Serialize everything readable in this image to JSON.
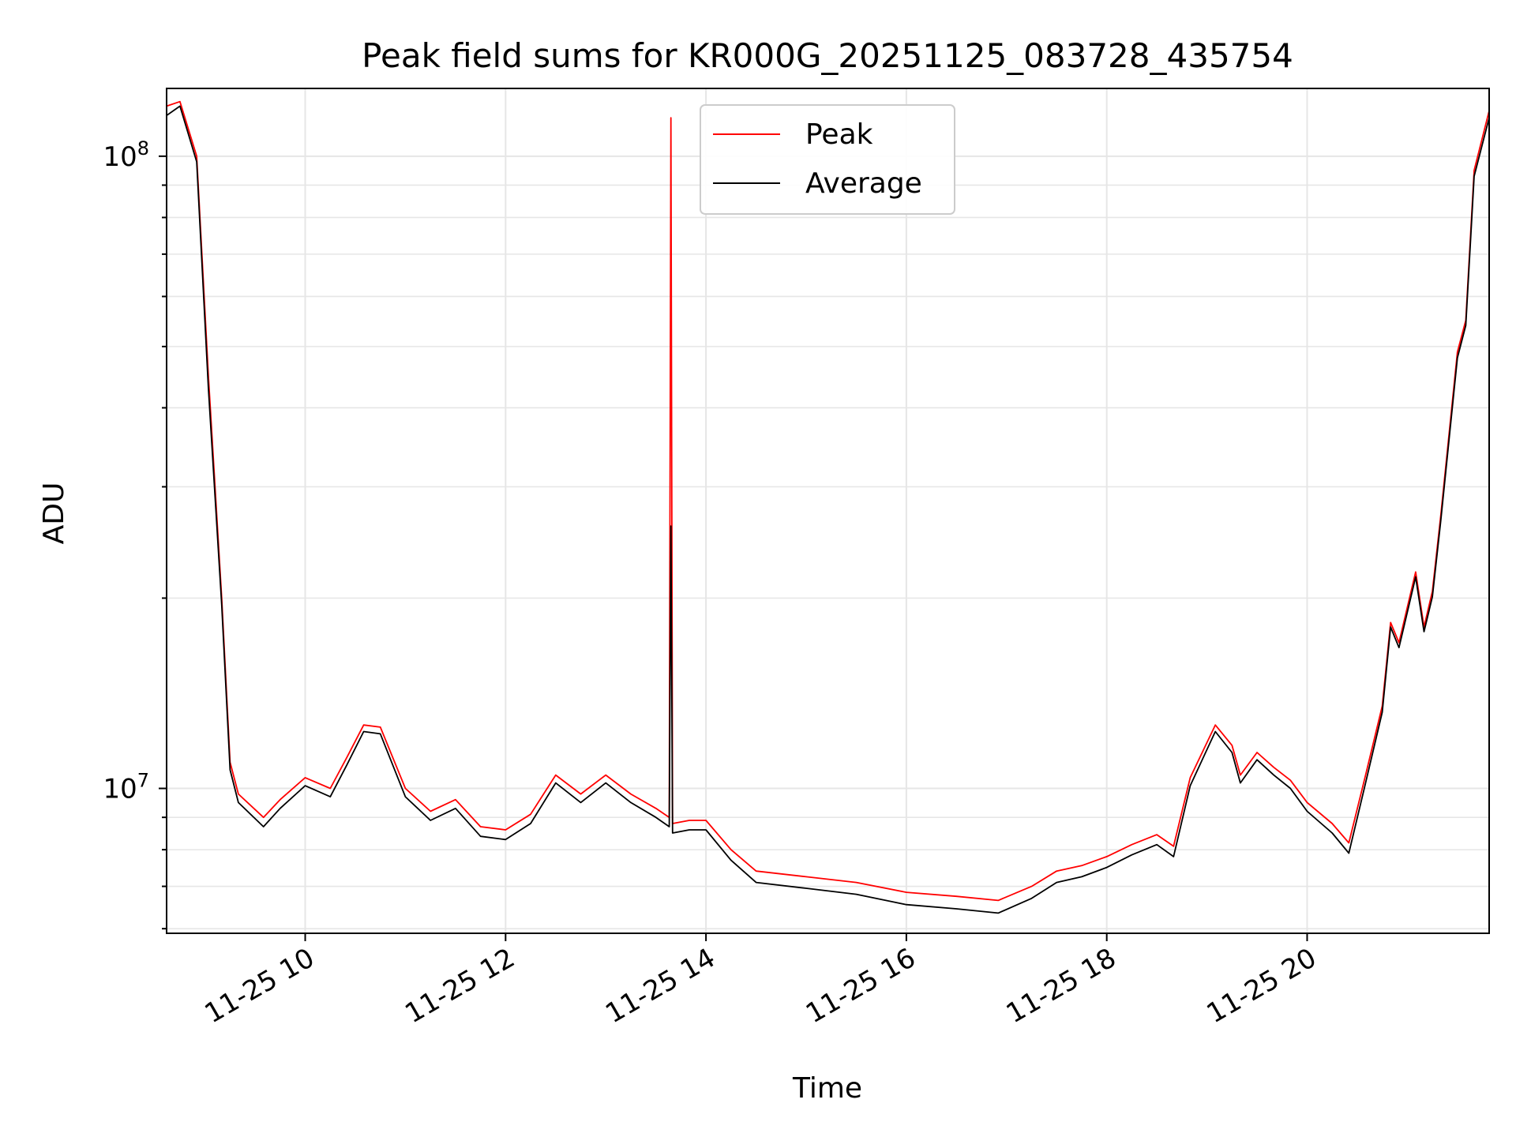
{
  "chart_data": {
    "type": "line",
    "title": "Peak field sums for KR000G_20251125_083728_435754",
    "xlabel": "Time",
    "ylabel": "ADU",
    "yscale": "log",
    "ylim": [
      5900000,
      128000000
    ],
    "xlim": [
      "2025-11-25 08:37",
      "2025-11-25 21:49"
    ],
    "grid": true,
    "legend": "upper center",
    "x_ticks": [
      "11-25 10",
      "11-25 12",
      "11-25 14",
      "11-25 16",
      "11-25 18",
      "11-25 20"
    ],
    "y_ticks": [
      "10^7",
      "10^8"
    ],
    "colors": {
      "peak": "#ff0000",
      "average": "#000000",
      "grid": "#e6e6e6"
    },
    "x": [
      "2025-11-25 08:37",
      "2025-11-25 08:45",
      "2025-11-25 08:55",
      "2025-11-25 09:02",
      "2025-11-25 09:10",
      "2025-11-25 09:15",
      "2025-11-25 09:20",
      "2025-11-25 09:35",
      "2025-11-25 09:45",
      "2025-11-25 10:00",
      "2025-11-25 10:15",
      "2025-11-25 10:25",
      "2025-11-25 10:35",
      "2025-11-25 10:45",
      "2025-11-25 11:00",
      "2025-11-25 11:15",
      "2025-11-25 11:30",
      "2025-11-25 11:45",
      "2025-11-25 12:00",
      "2025-11-25 12:15",
      "2025-11-25 12:30",
      "2025-11-25 12:45",
      "2025-11-25 13:00",
      "2025-11-25 13:15",
      "2025-11-25 13:30",
      "2025-11-25 13:38",
      "2025-11-25 13:39",
      "2025-11-25 13:40",
      "2025-11-25 13:50",
      "2025-11-25 14:00",
      "2025-11-25 14:15",
      "2025-11-25 14:30",
      "2025-11-25 15:00",
      "2025-11-25 15:30",
      "2025-11-25 16:00",
      "2025-11-25 16:30",
      "2025-11-25 16:55",
      "2025-11-25 17:15",
      "2025-11-25 17:30",
      "2025-11-25 17:45",
      "2025-11-25 18:00",
      "2025-11-25 18:15",
      "2025-11-25 18:30",
      "2025-11-25 18:40",
      "2025-11-25 18:50",
      "2025-11-25 19:05",
      "2025-11-25 19:15",
      "2025-11-25 19:20",
      "2025-11-25 19:30",
      "2025-11-25 19:40",
      "2025-11-25 19:50",
      "2025-11-25 20:00",
      "2025-11-25 20:15",
      "2025-11-25 20:25",
      "2025-11-25 20:35",
      "2025-11-25 20:45",
      "2025-11-25 20:50",
      "2025-11-25 20:55",
      "2025-11-25 21:05",
      "2025-11-25 21:10",
      "2025-11-25 21:15",
      "2025-11-25 21:20",
      "2025-11-25 21:30",
      "2025-11-25 21:35",
      "2025-11-25 21:40",
      "2025-11-25 21:49"
    ],
    "series": [
      {
        "name": "Peak",
        "values": [
          120000000,
          122000000,
          100000000,
          45000000,
          20000000,
          11000000,
          9800000,
          9000000,
          9600000,
          10400000,
          10000000,
          11200000,
          12600000,
          12500000,
          10000000,
          9200000,
          9600000,
          8700000,
          8600000,
          9100000,
          10500000,
          9800000,
          10500000,
          9800000,
          9300000,
          9000000,
          115000000,
          8800000,
          8900000,
          8900000,
          8000000,
          7400000,
          7250000,
          7100000,
          6850000,
          6750000,
          6650000,
          7000000,
          7400000,
          7550000,
          7800000,
          8150000,
          8450000,
          8100000,
          10400000,
          12600000,
          11700000,
          10500000,
          11400000,
          10800000,
          10300000,
          9500000,
          8800000,
          8200000,
          10500000,
          13500000,
          18300000,
          17000000,
          22000000,
          18000000,
          20500000,
          27000000,
          49000000,
          55000000,
          95000000,
          118000000
        ]
      },
      {
        "name": "Average",
        "values": [
          116000000,
          120000000,
          98000000,
          43000000,
          19500000,
          10700000,
          9500000,
          8700000,
          9300000,
          10100000,
          9700000,
          10900000,
          12300000,
          12200000,
          9700000,
          8900000,
          9300000,
          8400000,
          8300000,
          8800000,
          10200000,
          9500000,
          10200000,
          9500000,
          9000000,
          8700000,
          26000000,
          8500000,
          8600000,
          8600000,
          7700000,
          7100000,
          6950000,
          6800000,
          6550000,
          6450000,
          6350000,
          6700000,
          7100000,
          7250000,
          7500000,
          7850000,
          8150000,
          7800000,
          10100000,
          12300000,
          11400000,
          10200000,
          11100000,
          10500000,
          10000000,
          9200000,
          8500000,
          7900000,
          10200000,
          13200000,
          18000000,
          16700000,
          21600000,
          17700000,
          20100000,
          26500000,
          48000000,
          54000000,
          93000000,
          115000000
        ]
      }
    ]
  }
}
